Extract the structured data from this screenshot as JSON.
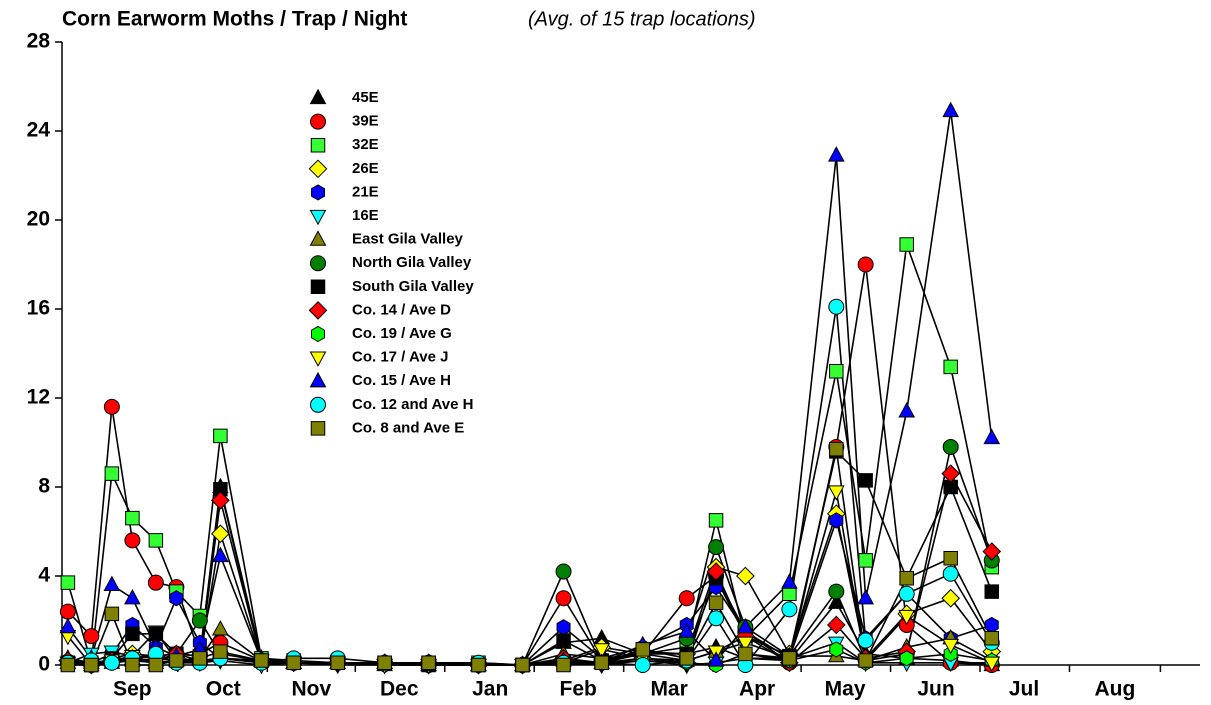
{
  "chart_data": {
    "type": "line",
    "title": "Corn Earworm Moths / Trap / Night",
    "subtitle": "(Avg. of 15 trap locations)",
    "x": [
      2,
      10,
      17,
      24,
      32,
      39,
      47,
      54,
      68,
      79,
      94,
      110,
      125,
      142,
      157,
      171,
      184,
      198,
      213,
      223,
      233,
      248,
      264,
      274,
      288,
      303,
      317
    ],
    "xlim": [
      0,
      388
    ],
    "xticks": [
      {
        "value": 24,
        "label": "Sep"
      },
      {
        "value": 55,
        "label": "Oct"
      },
      {
        "value": 85,
        "label": "Nov"
      },
      {
        "value": 115,
        "label": "Dec"
      },
      {
        "value": 146,
        "label": "Jan"
      },
      {
        "value": 176,
        "label": "Feb"
      },
      {
        "value": 207,
        "label": "Mar"
      },
      {
        "value": 237,
        "label": "Apr"
      },
      {
        "value": 267,
        "label": "May"
      },
      {
        "value": 298,
        "label": "Jun"
      },
      {
        "value": 328,
        "label": "Jul"
      },
      {
        "value": 359,
        "label": "Aug"
      }
    ],
    "ylim": [
      0,
      28
    ],
    "yticks": [
      0,
      4,
      8,
      12,
      16,
      20,
      24,
      28
    ],
    "grid": false,
    "series": [
      {
        "name": "45E",
        "color": "#000000",
        "marker": "triangle",
        "values": [
          0.3,
          0.1,
          0.2,
          0.3,
          0.2,
          0.5,
          0.4,
          8.0,
          0.3,
          0.1,
          0.1,
          0.1,
          0.1,
          0,
          0,
          1.0,
          1.2,
          0.5,
          0.5,
          0.8,
          0.3,
          0.2,
          2.8,
          0.5,
          0.3,
          0.2,
          0
        ]
      },
      {
        "name": "39E",
        "color": "#ff0000",
        "marker": "circle",
        "values": [
          2.4,
          1.3,
          11.6,
          5.6,
          3.7,
          3.5,
          0.5,
          1.0,
          0.2,
          0.1,
          0.1,
          0.1,
          0.1,
          0,
          0,
          3.0,
          0.2,
          0.5,
          3.0,
          4.0,
          1.5,
          0.1,
          9.8,
          18.0,
          1.8,
          0.1,
          0
        ]
      },
      {
        "name": "32E",
        "color": "#33ff33",
        "marker": "square",
        "values": [
          3.7,
          0.1,
          8.6,
          6.6,
          5.6,
          3.3,
          2.2,
          10.3,
          0.3,
          0.2,
          0.1,
          0.1,
          0.1,
          0.1,
          0,
          0.1,
          0.1,
          0.5,
          0.8,
          6.5,
          1.2,
          3.2,
          13.2,
          4.7,
          18.9,
          13.4,
          4.4
        ]
      },
      {
        "name": "26E",
        "color": "#ffff00",
        "marker": "diamond",
        "values": [
          0.2,
          0,
          0.3,
          0.5,
          0.4,
          0.3,
          0.2,
          5.9,
          0.2,
          0.1,
          0.1,
          0.1,
          0,
          0,
          0,
          0.2,
          0.8,
          0.5,
          0.5,
          4.4,
          4.0,
          0.5,
          6.8,
          0.3,
          2.3,
          3.0,
          0.6
        ]
      },
      {
        "name": "21E",
        "color": "#0000ff",
        "marker": "hexagon",
        "values": [
          0.2,
          0.1,
          0.5,
          1.8,
          0.8,
          3.0,
          1.0,
          0.3,
          0.2,
          0.1,
          0.1,
          0.1,
          0,
          0,
          0,
          1.7,
          0.3,
          0.8,
          1.8,
          3.5,
          1.5,
          0.3,
          6.5,
          1.2,
          3.2,
          1.2,
          1.8
        ]
      },
      {
        "name": "16E",
        "color": "#00ffff",
        "marker": "triangle-down",
        "values": [
          0.1,
          0.5,
          0.6,
          0.4,
          1.5,
          0.2,
          0.1,
          0.2,
          0,
          0.1,
          0,
          0,
          0,
          0,
          0,
          0.1,
          0,
          0.2,
          0,
          0.1,
          0.3,
          0.3,
          1.0,
          0.1,
          0.1,
          0.1,
          0.1
        ]
      },
      {
        "name": "East Gila Valley",
        "color": "#808000",
        "marker": "triangle",
        "values": [
          0.1,
          0,
          0.1,
          0.2,
          0.1,
          0.2,
          0.3,
          1.6,
          0.2,
          0.1,
          0.1,
          0,
          0,
          0,
          0,
          0.5,
          0.3,
          0.5,
          0.2,
          0.6,
          1.3,
          0.4,
          0.4,
          0.2,
          0.8,
          1.2,
          0.2
        ]
      },
      {
        "name": "North Gila Valley",
        "color": "#008000",
        "marker": "circle",
        "values": [
          0.1,
          0,
          0.2,
          0.3,
          0.4,
          0.5,
          2.0,
          0.5,
          0.2,
          0.1,
          0.1,
          0.1,
          0,
          0,
          0,
          4.2,
          0.2,
          0.5,
          1.2,
          5.3,
          1.7,
          0.4,
          3.3,
          0.2,
          0.5,
          9.8,
          4.7
        ]
      },
      {
        "name": "South Gila Valley",
        "color": "#000000",
        "marker": "square",
        "values": [
          0.1,
          0,
          0.3,
          1.4,
          1.4,
          0.5,
          0.4,
          7.9,
          0.2,
          0.1,
          0.1,
          0.1,
          0,
          0,
          0,
          1.1,
          0.2,
          0.6,
          0.5,
          3.9,
          1.3,
          0.4,
          9.6,
          8.3,
          3.9,
          8.0,
          3.3
        ]
      },
      {
        "name": "Co. 14 / Ave D",
        "color": "#ff0000",
        "marker": "diamond",
        "values": [
          0.2,
          0,
          0.2,
          0.3,
          0.4,
          0.5,
          0.2,
          7.4,
          0.2,
          0.1,
          0.1,
          0.1,
          0.1,
          0,
          0,
          0.3,
          0.1,
          0.3,
          0.1,
          4.2,
          1.3,
          0.1,
          1.8,
          0.3,
          0.6,
          8.6,
          5.1
        ]
      },
      {
        "name": "Co. 19 / Ave G",
        "color": "#00ff00",
        "marker": "hexagon",
        "values": [
          0.1,
          0,
          0.1,
          0.2,
          0.2,
          0.1,
          0.2,
          0.3,
          0.1,
          0.1,
          0.1,
          0,
          0,
          0,
          0,
          0.1,
          0.1,
          0.2,
          0.1,
          0,
          0.5,
          0.2,
          0.7,
          0.1,
          0.3,
          0.5,
          0.2
        ]
      },
      {
        "name": "Co. 17 / Ave J",
        "color": "#ffff00",
        "marker": "triangle-down",
        "values": [
          1.3,
          0,
          0.2,
          0.4,
          0.3,
          0.2,
          0.2,
          0.3,
          0.2,
          0.1,
          0.1,
          0,
          0,
          0,
          0,
          0.1,
          0.7,
          0.3,
          0.2,
          0.6,
          1.0,
          0.3,
          7.8,
          0.2,
          2.2,
          0.9,
          0.1
        ]
      },
      {
        "name": "Co. 15 / Ave H",
        "color": "#0000ff",
        "marker": "triangle",
        "values": [
          1.7,
          0.3,
          3.6,
          3.0,
          0.8,
          0.4,
          0.7,
          4.9,
          0.2,
          0.1,
          0.1,
          0.1,
          0,
          0,
          0,
          0.2,
          0.1,
          0.9,
          1.5,
          0.2,
          1.7,
          3.7,
          22.9,
          3.0,
          11.4,
          24.9,
          10.2
        ]
      },
      {
        "name": "Co. 12 and Ave H",
        "color": "#00ffff",
        "marker": "circle",
        "values": [
          0.1,
          0.2,
          0.1,
          0.3,
          0.5,
          0.1,
          0.1,
          0.3,
          0.1,
          0.3,
          0.3,
          0.1,
          0.1,
          0.1,
          0,
          0.1,
          0.1,
          0,
          0.2,
          2.1,
          0,
          2.5,
          16.1,
          1.1,
          3.2,
          4.1,
          1.0
        ]
      },
      {
        "name": "Co. 8 and Ave E",
        "color": "#808000",
        "marker": "square",
        "values": [
          0,
          0,
          2.3,
          0,
          0,
          0.2,
          0.3,
          0.6,
          0.2,
          0.1,
          0.1,
          0.1,
          0.1,
          0,
          0,
          0,
          0.1,
          0.7,
          0.3,
          2.8,
          0.5,
          0.3,
          9.7,
          0.2,
          3.9,
          4.8,
          1.2
        ]
      }
    ]
  }
}
